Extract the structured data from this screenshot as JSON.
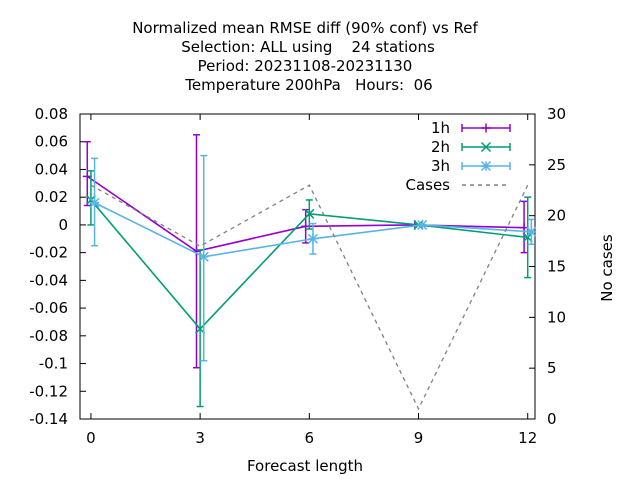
{
  "chart_data": {
    "type": "line",
    "title_lines": [
      "Normalized mean RMSE diff (90% conf) vs Ref",
      "Selection: ALL using    24 stations",
      "Period: 20231108-20231130",
      "Temperature 200hPa   Hours:  06"
    ],
    "xlabel": "Forecast length",
    "ylabel": "",
    "y2label": "No cases",
    "xlim": [
      -0.3,
      12.2
    ],
    "ylim": [
      -0.14,
      0.08
    ],
    "y2lim": [
      0,
      30
    ],
    "x_ticks": [
      "0",
      "3",
      "6",
      "9",
      "12"
    ],
    "y_ticks": [
      "0.08",
      "0.06",
      "0.04",
      "0.02",
      "0",
      "-0.02",
      "-0.04",
      "-0.06",
      "-0.08",
      "-0.1",
      "-0.12",
      "-0.14"
    ],
    "y2_ticks": [
      "30",
      "25",
      "20",
      "15",
      "10",
      "5",
      "0"
    ],
    "grid": false,
    "legend_position": "top-right",
    "series": [
      {
        "name": "1h",
        "color": "#9400d3",
        "marker": "plus",
        "points": [
          {
            "x": -0.1,
            "y": 0.035,
            "lo": 0.014,
            "hi": 0.06
          },
          {
            "x": 2.9,
            "y": -0.019,
            "lo": -0.103,
            "hi": 0.065
          },
          {
            "x": 5.9,
            "y": -0.001,
            "lo": -0.013,
            "hi": 0.011
          },
          {
            "x": 8.9,
            "y": 0.0,
            "lo": 0.0,
            "hi": 0.0
          },
          {
            "x": 11.9,
            "y": -0.002,
            "lo": -0.02,
            "hi": 0.017
          }
        ]
      },
      {
        "name": "2h",
        "color": "#009e73",
        "marker": "cross",
        "points": [
          {
            "x": 0.0,
            "y": 0.018,
            "lo": 0.0,
            "hi": 0.039
          },
          {
            "x": 3.0,
            "y": -0.075,
            "lo": -0.131,
            "hi": -0.018
          },
          {
            "x": 6.0,
            "y": 0.008,
            "lo": -0.003,
            "hi": 0.018
          },
          {
            "x": 9.0,
            "y": 0.0,
            "lo": 0.0,
            "hi": 0.0
          },
          {
            "x": 12.0,
            "y": -0.009,
            "lo": -0.038,
            "hi": 0.02
          }
        ]
      },
      {
        "name": "3h",
        "color": "#56b4e9",
        "marker": "star",
        "points": [
          {
            "x": 0.1,
            "y": 0.016,
            "lo": -0.015,
            "hi": 0.048
          },
          {
            "x": 3.1,
            "y": -0.023,
            "lo": -0.098,
            "hi": 0.05
          },
          {
            "x": 6.1,
            "y": -0.01,
            "lo": -0.021,
            "hi": 0.001
          },
          {
            "x": 9.1,
            "y": 0.0,
            "lo": 0.0,
            "hi": 0.0
          },
          {
            "x": 12.1,
            "y": -0.005,
            "lo": -0.014,
            "hi": 0.004
          }
        ]
      },
      {
        "name": "Cases",
        "color": "#808080",
        "dashed": true,
        "axis": "y2",
        "points": [
          {
            "x": 0,
            "y": 23
          },
          {
            "x": 3,
            "y": 17
          },
          {
            "x": 6,
            "y": 23
          },
          {
            "x": 9,
            "y": 1
          },
          {
            "x": 12,
            "y": 23
          }
        ]
      }
    ]
  }
}
